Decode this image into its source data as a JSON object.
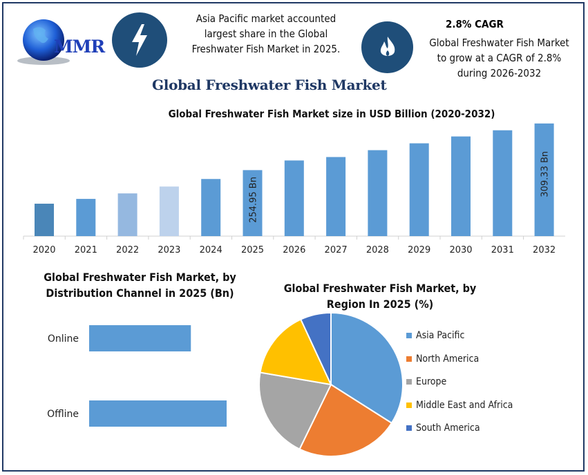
{
  "header": {
    "logo_text": "MMR",
    "highlight_1": {
      "icon": "lightning-bolt-icon",
      "text": "Asia Pacific market accounted largest share in the Global Freshwater Fish Market in 2025.",
      "lines": [
        "Asia Pacific market accounted",
        "largest share in the Global",
        "Freshwater Fish Market in 2025."
      ]
    },
    "highlight_2": {
      "icon": "flame-icon",
      "heading": "2.8% CAGR",
      "lines": [
        "Global Freshwater Fish Market",
        "to grow at a CAGR of 2.8%",
        "during 2026-2032"
      ]
    },
    "title": "Global Freshwater Fish Market"
  },
  "colors": {
    "brand_navy": "#1f3864",
    "icon_circle": "#1f4e79",
    "bar_blue": "#5b9bd5"
  },
  "chart_data": [
    {
      "type": "bar",
      "title": "Global Freshwater Fish Market size in USD Billion (2020-2032)",
      "categories": [
        "2020",
        "2021",
        "2022",
        "2023",
        "2024",
        "2025",
        "2026",
        "2027",
        "2028",
        "2029",
        "2030",
        "2031",
        "2032"
      ],
      "values": [
        215.8,
        221.4,
        227.8,
        235.8,
        244.6,
        254.95,
        266.2,
        270.2,
        278.2,
        286.2,
        294.2,
        301.4,
        309.33
      ],
      "bar_colors": [
        "#4a86b8",
        "#5b9bd5",
        "#95b8e0",
        "#bdd2ec",
        "#5b9bd5",
        "#5b9bd5",
        "#5b9bd5",
        "#5b9bd5",
        "#5b9bd5",
        "#5b9bd5",
        "#5b9bd5",
        "#5b9bd5",
        "#5b9bd5"
      ],
      "data_labels": {
        "2025": "254.95 Bn",
        "2032": "309.33 Bn"
      },
      "ylim": [
        178,
        310
      ],
      "grid": false,
      "xlabel": "",
      "ylabel": ""
    },
    {
      "type": "bar",
      "orientation": "horizontal",
      "title_lines": [
        "Global Freshwater Fish Market, by",
        "Distribution Channel in 2025 (Bn)"
      ],
      "categories": [
        "Online",
        "Offline"
      ],
      "values": [
        0.74,
        1.0
      ],
      "value_note_relative": true,
      "color": "#5b9bd5",
      "grid": false
    },
    {
      "type": "pie",
      "title_lines": [
        "Global Freshwater Fish Market, by",
        "Region In 2025 (%)"
      ],
      "labels": [
        "Asia Pacific",
        "North America",
        "Europe",
        "Middle East and Africa",
        "South America"
      ],
      "values": [
        34,
        23.2,
        20.5,
        15.4,
        6.9
      ],
      "colors": [
        "#5b9bd5",
        "#ed7d31",
        "#a5a5a5",
        "#ffc000",
        "#4472c4"
      ],
      "legend": "right"
    }
  ]
}
